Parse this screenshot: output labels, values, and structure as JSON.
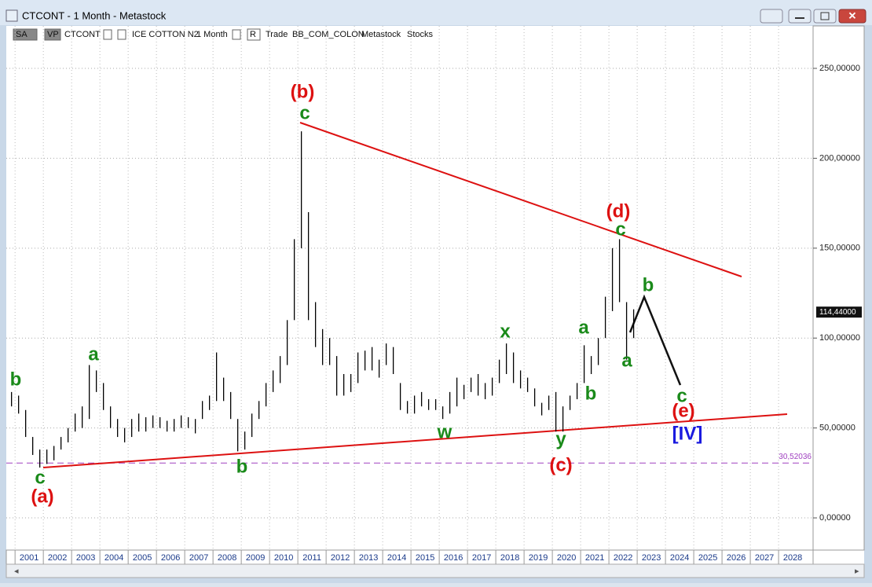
{
  "window": {
    "title": "CTCONT - 1 Month - Metastock"
  },
  "toolbar": {
    "items": [
      "SA",
      "VP",
      "CTCONT",
      "ICE COTTON N2",
      "1 Month",
      "R",
      "Trade",
      "BB_COM_COLON",
      "Metastock",
      "Stocks"
    ]
  },
  "chart_data": {
    "type": "ohlc",
    "x": [
      2000.875,
      2001.125,
      2001.375,
      2001.625,
      2001.875,
      2002.125,
      2002.375,
      2002.625,
      2002.875,
      2003.125,
      2003.375,
      2003.625,
      2003.875,
      2004.125,
      2004.375,
      2004.625,
      2004.875,
      2005.125,
      2005.375,
      2005.625,
      2005.875,
      2006.125,
      2006.375,
      2006.625,
      2006.875,
      2007.125,
      2007.375,
      2007.625,
      2007.875,
      2008.125,
      2008.375,
      2008.625,
      2008.875,
      2009.125,
      2009.375,
      2009.625,
      2009.875,
      2010.125,
      2010.375,
      2010.625,
      2010.875,
      2011.125,
      2011.375,
      2011.625,
      2011.875,
      2012.125,
      2012.375,
      2012.625,
      2012.875,
      2013.125,
      2013.375,
      2013.625,
      2013.875,
      2014.125,
      2014.375,
      2014.625,
      2014.875,
      2015.125,
      2015.375,
      2015.625,
      2015.875,
      2016.125,
      2016.375,
      2016.625,
      2016.875,
      2017.125,
      2017.375,
      2017.625,
      2017.875,
      2018.125,
      2018.375,
      2018.625,
      2018.875,
      2019.125,
      2019.375,
      2019.625,
      2019.875,
      2020.125,
      2020.375,
      2020.625,
      2020.875,
      2021.125,
      2021.375,
      2021.625,
      2021.875,
      2022.125,
      2022.375,
      2022.625,
      2022.875
    ],
    "series": [
      {
        "color": "#000000",
        "high": [
          70,
          68,
          60,
          45,
          38,
          38,
          40,
          45,
          50,
          58,
          62,
          85,
          82,
          75,
          62,
          55,
          50,
          55,
          58,
          56,
          57,
          56,
          54,
          55,
          57,
          56,
          55,
          65,
          68,
          92,
          78,
          70,
          55,
          48,
          58,
          65,
          75,
          82,
          90,
          110,
          155,
          215,
          170,
          120,
          105,
          100,
          90,
          80,
          80,
          92,
          93,
          95,
          88,
          97,
          95,
          75,
          65,
          68,
          70,
          66,
          66,
          62,
          70,
          78,
          74,
          78,
          80,
          75,
          78,
          88,
          97,
          92,
          82,
          78,
          72,
          64,
          68,
          70,
          62,
          68,
          75,
          96,
          90,
          100,
          123,
          150,
          155,
          120,
          116
        ],
        "low": [
          62,
          58,
          45,
          35,
          28,
          30,
          32,
          38,
          42,
          48,
          50,
          55,
          70,
          60,
          50,
          45,
          42,
          45,
          48,
          48,
          50,
          50,
          48,
          48,
          50,
          50,
          47,
          55,
          60,
          65,
          65,
          55,
          37,
          38,
          45,
          55,
          62,
          70,
          75,
          85,
          110,
          150,
          110,
          95,
          85,
          85,
          68,
          68,
          70,
          75,
          82,
          82,
          78,
          85,
          80,
          60,
          58,
          58,
          62,
          60,
          60,
          55,
          58,
          62,
          66,
          70,
          68,
          66,
          68,
          75,
          80,
          75,
          72,
          70,
          62,
          57,
          60,
          48,
          48,
          60,
          66,
          75,
          80,
          85,
          100,
          115,
          120,
          88,
          100
        ]
      }
    ],
    "xlim": [
      2000.69,
      2029.22
    ],
    "ylim": [
      -17.9,
      273.6
    ],
    "xticks": [
      2001,
      2002,
      2003,
      2004,
      2005,
      2006,
      2007,
      2008,
      2009,
      2010,
      2011,
      2012,
      2013,
      2014,
      2015,
      2016,
      2017,
      2018,
      2019,
      2020,
      2021,
      2022,
      2023,
      2024,
      2025,
      2026,
      2027,
      2028
    ],
    "yticks": [
      {
        "value": 0,
        "label": "0,00000"
      },
      {
        "value": 50,
        "label": "50,00000"
      },
      {
        "value": 100,
        "label": "100,00000"
      },
      {
        "value": 150,
        "label": "150,00000"
      },
      {
        "value": 200,
        "label": "200,00000"
      },
      {
        "value": 250,
        "label": "250,00000"
      }
    ],
    "grid": true,
    "hline": {
      "value": 30.52036,
      "label": "30,52036",
      "color": "#a040c0"
    },
    "last_price": {
      "value": 114.44,
      "label": "114,44000"
    },
    "trendline_color": "#dd1111",
    "annotations": [
      {
        "text": "(b)",
        "color": "#dd1111"
      },
      {
        "text": "c",
        "color": "#1a8a1a"
      },
      {
        "text": "(d)",
        "color": "#dd1111"
      },
      {
        "text": "c",
        "color": "#1a8a1a"
      },
      {
        "text": "b",
        "color": "#1a8a1a"
      },
      {
        "text": "a",
        "color": "#1a8a1a"
      },
      {
        "text": "a",
        "color": "#1a8a1a"
      },
      {
        "text": "b",
        "color": "#1a8a1a"
      },
      {
        "text": "x",
        "color": "#1a8a1a"
      },
      {
        "text": "w",
        "color": "#1a8a1a"
      },
      {
        "text": "y",
        "color": "#1a8a1a"
      },
      {
        "text": "(c)",
        "color": "#dd1111"
      },
      {
        "text": "c",
        "color": "#1a8a1a"
      },
      {
        "text": "(e)",
        "color": "#dd1111"
      },
      {
        "text": "[IV]",
        "color": "#1a1adf"
      },
      {
        "text": "b",
        "color": "#1a8a1a"
      },
      {
        "text": "c",
        "color": "#1a8a1a"
      },
      {
        "text": "(a)",
        "color": "#dd1111"
      },
      {
        "text": "a",
        "color": "#1a8a1a"
      },
      {
        "text": "b",
        "color": "#1a8a1a"
      }
    ]
  }
}
